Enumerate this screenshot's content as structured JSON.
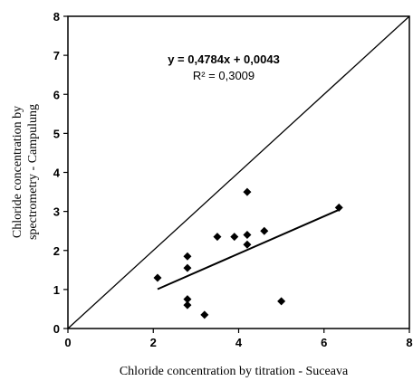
{
  "chart_data": {
    "type": "scatter",
    "title": "",
    "xlabel": "Chloride concentration by titration - Suceava",
    "ylabel": [
      "Chloride concentration by",
      "spectrometry - Campulung"
    ],
    "xlim": [
      0,
      8
    ],
    "ylim": [
      0,
      8
    ],
    "x_ticks": [
      "0",
      "2",
      "4",
      "6",
      "8"
    ],
    "y_ticks": [
      "0",
      "1",
      "2",
      "3",
      "4",
      "5",
      "6",
      "7",
      "8"
    ],
    "grid": false,
    "legend": "none",
    "points": [
      {
        "x": 2.1,
        "y": 1.3
      },
      {
        "x": 2.8,
        "y": 1.85
      },
      {
        "x": 2.8,
        "y": 1.55
      },
      {
        "x": 2.8,
        "y": 0.75
      },
      {
        "x": 2.8,
        "y": 0.6
      },
      {
        "x": 3.2,
        "y": 0.35
      },
      {
        "x": 3.5,
        "y": 2.35
      },
      {
        "x": 3.9,
        "y": 2.35
      },
      {
        "x": 4.2,
        "y": 3.5
      },
      {
        "x": 4.2,
        "y": 2.4
      },
      {
        "x": 4.2,
        "y": 2.15
      },
      {
        "x": 4.6,
        "y": 2.5
      },
      {
        "x": 5.0,
        "y": 0.7
      },
      {
        "x": 6.35,
        "y": 3.1
      }
    ],
    "trendline": {
      "slope": 0.4784,
      "intercept": 0.0043,
      "x_range": [
        2.1,
        6.35
      ]
    },
    "reference_line": {
      "from": [
        0,
        0
      ],
      "to": [
        8,
        8
      ]
    },
    "equation_label": "y = 0,4784x + 0,0043",
    "r2_label": "R² = 0,3009",
    "marker_color": "#000000",
    "line_color": "#000000"
  }
}
